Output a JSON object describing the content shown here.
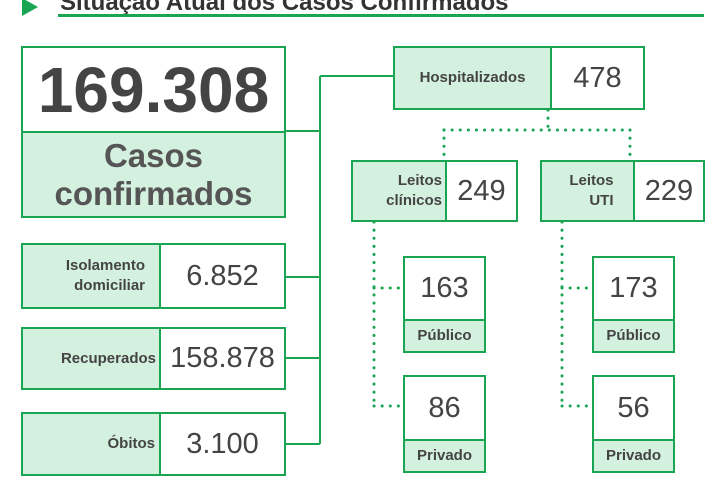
{
  "header": {
    "title": "Situação Atual dos Casos Confirmados"
  },
  "colors": {
    "accent": "#1aa552",
    "label_fill": "#d4f0df",
    "text": "#444444"
  },
  "confirmed": {
    "value": "169.308",
    "label": "Casos confirmados"
  },
  "isolation": {
    "label": "Isolamento domiciliar",
    "value": "6.852"
  },
  "recovered": {
    "label": "Recuperados",
    "value": "158.878"
  },
  "deaths": {
    "label": "Óbitos",
    "value": "3.100"
  },
  "hospitalized": {
    "label": "Hospitalizados",
    "value": "478"
  },
  "clinical_beds": {
    "label": "Leitos clínicos",
    "value": "249",
    "public": {
      "value": "163",
      "label": "Público"
    },
    "private": {
      "value": "86",
      "label": "Privado"
    }
  },
  "icu_beds": {
    "label": "Leitos UTI",
    "value": "229",
    "public": {
      "value": "173",
      "label": "Público"
    },
    "private": {
      "value": "56",
      "label": "Privado"
    }
  }
}
